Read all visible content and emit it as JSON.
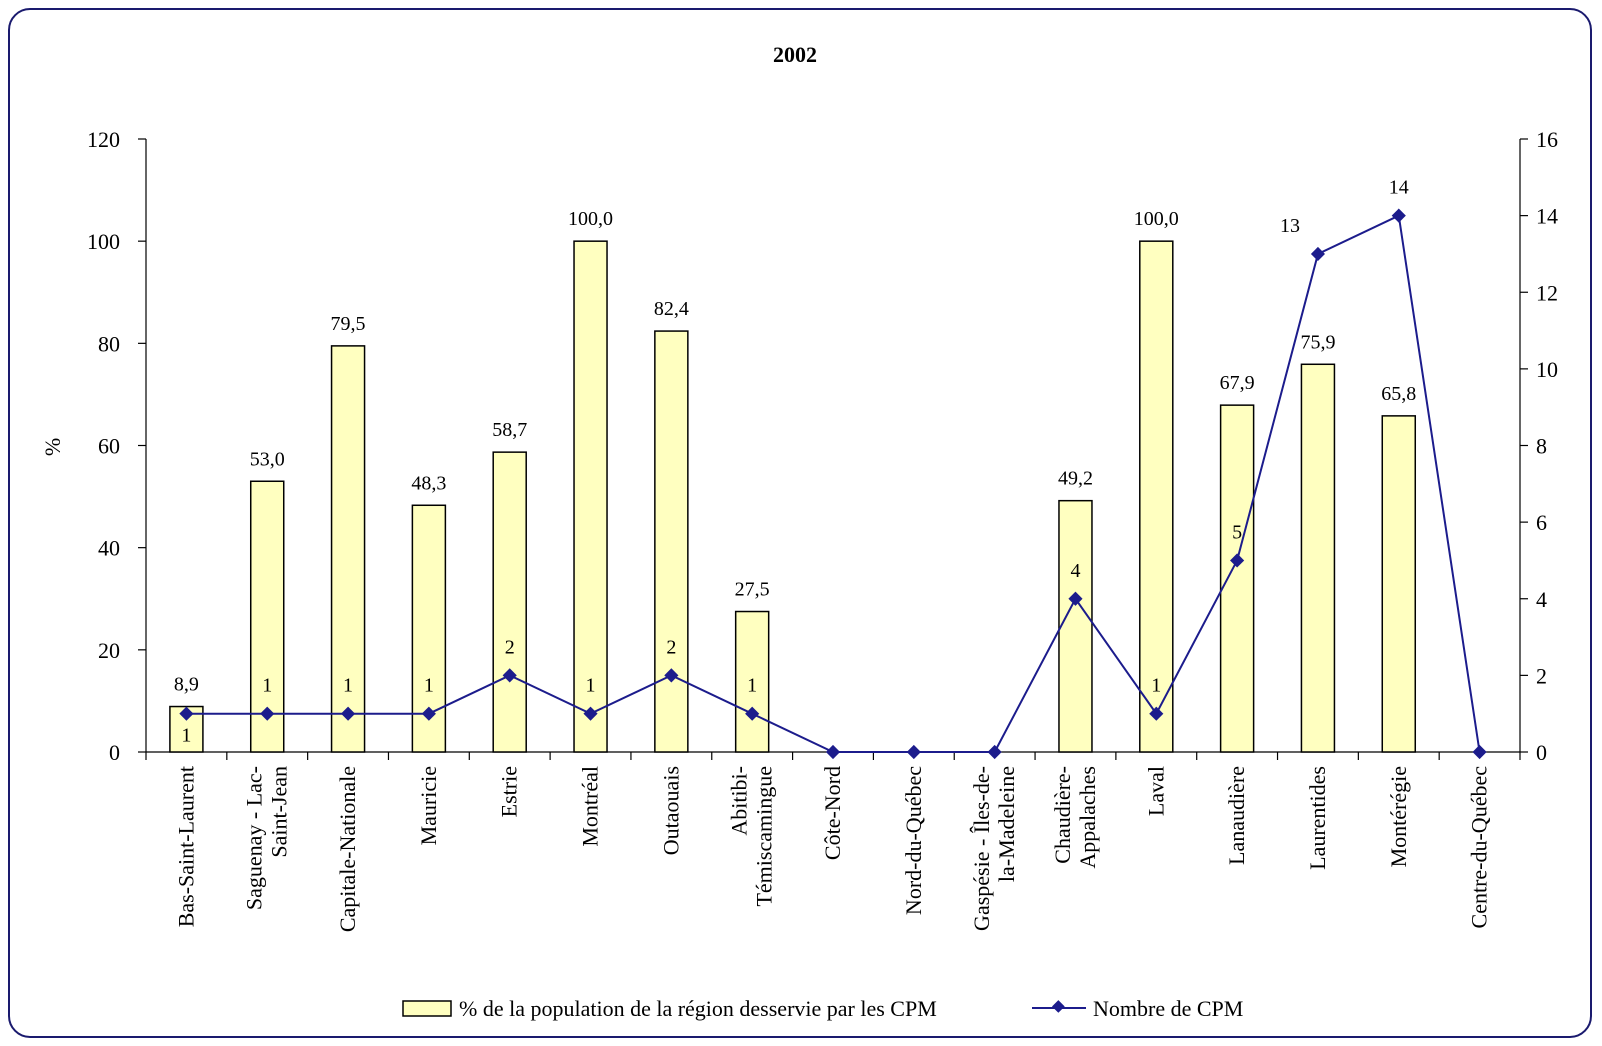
{
  "chart_data": {
    "type": "bar",
    "title": "2002",
    "ylabel": "%",
    "y2label": "",
    "ylim": [
      0,
      120
    ],
    "y2lim": [
      0,
      16
    ],
    "yticks": [
      "0",
      "20",
      "40",
      "60",
      "80",
      "100",
      "120"
    ],
    "y2ticks": [
      "0",
      "2",
      "4",
      "6",
      "8",
      "10",
      "12",
      "14",
      "16"
    ],
    "categories": [
      [
        "Bas-Saint-Laurent"
      ],
      [
        "Saguenay - Lac-",
        "Saint-Jean"
      ],
      [
        "Capitale-Nationale"
      ],
      [
        "Mauricie"
      ],
      [
        "Estrie"
      ],
      [
        "Montréal"
      ],
      [
        "Outaouais"
      ],
      [
        "Abitibi-",
        "Témiscamingue"
      ],
      [
        "Côte-Nord"
      ],
      [
        "Nord-du-Québec"
      ],
      [
        "Gaspésie - Îles-de-",
        "la-Madeleine"
      ],
      [
        "Chaudière-",
        "Appalaches"
      ],
      [
        "Laval"
      ],
      [
        "Lanaudière"
      ],
      [
        "Laurentides"
      ],
      [
        "Montérégie"
      ],
      [
        "Centre-du-Québec"
      ]
    ],
    "series": [
      {
        "name": "% de la population de la région desservie par les CPM",
        "kind": "bar",
        "axis": "left",
        "color": "#ffffc0",
        "values": [
          8.9,
          53.0,
          79.5,
          48.3,
          58.7,
          100.0,
          82.4,
          27.5,
          null,
          null,
          null,
          49.2,
          100.0,
          67.9,
          75.9,
          65.8,
          null
        ],
        "labels": [
          "8,9",
          "53,0",
          "79,5",
          "48,3",
          "58,7",
          "100,0",
          "82,4",
          "27,5",
          "",
          "",
          "",
          "49,2",
          "100,0",
          "67,9",
          "75,9",
          "65,8",
          ""
        ]
      },
      {
        "name": "Nombre de CPM",
        "kind": "line",
        "axis": "right",
        "color": "#1c1c8c",
        "values": [
          1,
          1,
          1,
          1,
          2,
          1,
          2,
          1,
          0,
          0,
          0,
          4,
          1,
          5,
          13,
          14,
          0
        ],
        "labels": [
          "1",
          "1",
          "1",
          "1",
          "2",
          "1",
          "2",
          "1",
          "",
          "",
          "",
          "4",
          "1",
          "5",
          "13",
          "14",
          ""
        ]
      }
    ],
    "legend_position": "bottom",
    "grid": false
  }
}
